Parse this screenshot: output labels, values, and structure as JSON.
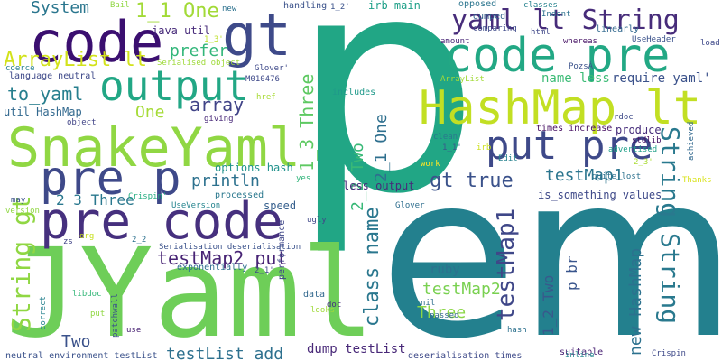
{
  "cloud": {
    "background": "#ffffff",
    "words": [
      {
        "text": "p",
        "color": "#21a685"
      },
      {
        "text": "em",
        "color": "#23808e"
      },
      {
        "text": "JYaml",
        "color": "#6ece58"
      },
      {
        "text": "SnakeYaml",
        "color": "#90d743"
      },
      {
        "text": "pre code",
        "color": "#46307e"
      },
      {
        "text": "pre p",
        "color": "#3e4989"
      },
      {
        "text": "code pre",
        "color": "#22a884"
      },
      {
        "text": "code",
        "color": "#3b0f70"
      },
      {
        "text": "gt",
        "color": "#3e4a89"
      },
      {
        "text": "output",
        "color": "#22a785"
      },
      {
        "text": "HashMap lt",
        "color": "#c2df23"
      },
      {
        "text": "put pre",
        "color": "#3e4989"
      },
      {
        "text": "yaml lt String",
        "color": "#472c7a"
      },
      {
        "text": "String String",
        "color": "#29798e"
      },
      {
        "text": "String gt",
        "color": "#90d743"
      },
      {
        "text": "1_1 One",
        "color": "#a2da37"
      },
      {
        "text": "System",
        "color": "#2a768e"
      },
      {
        "text": "ArrayList lt",
        "color": "#d2e21b"
      },
      {
        "text": "to_yaml",
        "color": "#277f8e"
      },
      {
        "text": "array",
        "color": "#404387"
      },
      {
        "text": "One",
        "color": "#a5db36"
      },
      {
        "text": "prefer",
        "color": "#32b67a"
      },
      {
        "text": "1_3 Three",
        "color": "#5ec962"
      },
      {
        "text": "2_2 Two",
        "color": "#38b977"
      },
      {
        "text": "2_1 One",
        "color": "#2e6f8e"
      },
      {
        "text": "gt true",
        "color": "#3b528b"
      },
      {
        "text": "testMap1",
        "color": "#2b758e"
      },
      {
        "text": "println",
        "color": "#2c718e"
      },
      {
        "text": "2_3 Three",
        "color": "#2a788e"
      },
      {
        "text": "testMap2 put",
        "color": "#482475"
      },
      {
        "text": "class name",
        "color": "#2a778e"
      },
      {
        "text": "testMap2",
        "color": "#7ad151"
      },
      {
        "text": "Three",
        "color": "#8bd646"
      },
      {
        "text": "testMap1",
        "color": "#3f4788"
      },
      {
        "text": "1_2 Two",
        "color": "#38598c"
      },
      {
        "text": "p br",
        "color": "#39558c"
      },
      {
        "text": "new HashMap",
        "color": "#2c718e"
      },
      {
        "text": "Two",
        "color": "#3b528b"
      },
      {
        "text": "testList add",
        "color": "#2d708e"
      },
      {
        "text": "dump testList",
        "color": "#482878"
      },
      {
        "text": "java util",
        "color": "#472a7a"
      },
      {
        "text": "util HashMap",
        "color": "#31688e"
      },
      {
        "text": "name less",
        "color": "#3bbb75"
      },
      {
        "text": "require yaml'",
        "color": "#3b528b"
      },
      {
        "text": "less output",
        "color": "#472c7a"
      },
      {
        "text": "is_something values",
        "color": "#3e4989"
      },
      {
        "text": "ruby",
        "color": "#2c718e"
      },
      {
        "text": "irb main",
        "color": "#1fa088"
      },
      {
        "text": "language neutral",
        "color": "#3e4989"
      },
      {
        "text": "options hash",
        "color": "#20928c"
      },
      {
        "text": "speed",
        "color": "#355f8d"
      },
      {
        "text": "performance",
        "color": "#3f4788"
      },
      {
        "text": "processed",
        "color": "#2a788e"
      },
      {
        "text": "exponentially",
        "color": "#2e6e8e"
      },
      {
        "text": "produce",
        "color": "#472d7b"
      },
      {
        "text": "times increase",
        "color": "#471063"
      },
      {
        "text": "Serialisation deserialisation",
        "color": "#3b528b"
      },
      {
        "text": "neutral environment testList",
        "color": "#3b528b"
      },
      {
        "text": "deserialisation times",
        "color": "#3e4a89"
      },
      {
        "text": "suitable",
        "color": "#482173"
      },
      {
        "text": "data",
        "color": "#31688e"
      },
      {
        "text": "handling",
        "color": "#3b528b"
      },
      {
        "text": "opposed",
        "color": "#2b758e"
      },
      {
        "text": "dumped",
        "color": "#33628d"
      },
      {
        "text": "comparing",
        "color": "#3e4989"
      },
      {
        "text": "amount",
        "color": "#482576"
      },
      {
        "text": "whereas",
        "color": "#471365"
      },
      {
        "text": "linearly",
        "color": "#31688e"
      },
      {
        "text": "includes",
        "color": "#1f998a"
      },
      {
        "text": "clean'",
        "color": "#2a788e"
      },
      {
        "text": "object",
        "color": "#414487"
      },
      {
        "text": "giving",
        "color": "#482878"
      },
      {
        "text": "coerce",
        "color": "#277f8e"
      },
      {
        "text": "Serialised object",
        "color": "#9fda3a"
      },
      {
        "text": "1_1'",
        "color": "#38598c"
      },
      {
        "text": "1_2'",
        "color": "#3b528b"
      },
      {
        "text": "1_3'",
        "color": "#bddf26"
      },
      {
        "text": "2_2",
        "color": "#2c718e"
      },
      {
        "text": "2_1'",
        "color": "#3e4a89"
      },
      {
        "text": "2_3'",
        "color": "#aadc32"
      },
      {
        "text": "Glover'",
        "color": "#3e4989"
      },
      {
        "text": "Glover",
        "color": "#2e6e8e"
      },
      {
        "text": "Crispin'",
        "color": "#26ad81"
      },
      {
        "text": "Crispin",
        "color": "#3e4989"
      },
      {
        "text": "href",
        "color": "#a8db34"
      },
      {
        "text": "html",
        "color": "#3f4788"
      },
      {
        "text": "Indent",
        "color": "#2c718e"
      },
      {
        "text": "classes",
        "color": "#26828e"
      },
      {
        "text": "rdoc",
        "color": "#3e4a89"
      },
      {
        "text": "stdlib",
        "color": "#471164"
      },
      {
        "text": "advertised",
        "color": "#1f9f88"
      },
      {
        "text": "achieved",
        "color": "#31688e"
      },
      {
        "text": "quite lost",
        "color": "#2c718e"
      },
      {
        "text": "Thanks",
        "color": "#d8e219"
      },
      {
        "text": "UseHeader",
        "color": "#3b528b"
      },
      {
        "text": "UseVersion",
        "color": "#25848e"
      },
      {
        "text": "PozsÁ",
        "color": "#3b528b"
      },
      {
        "text": "load",
        "color": "#3e4989"
      },
      {
        "text": "work",
        "color": "#fde725"
      },
      {
        "text": "Edit",
        "color": "#26828e"
      },
      {
        "text": "irb",
        "color": "#cde11d"
      },
      {
        "text": "nil",
        "color": "#2e6e8e"
      },
      {
        "text": "yes",
        "color": "#31b57b"
      },
      {
        "text": "doc",
        "color": "#46327e"
      },
      {
        "text": "passed",
        "color": "#31688e"
      },
      {
        "text": "hash",
        "color": "#2c718e"
      },
      {
        "text": "inline",
        "color": "#25858e"
      },
      {
        "text": "libdoc",
        "color": "#35b779"
      },
      {
        "text": "patchwall",
        "color": "#3b528b"
      },
      {
        "text": "looks",
        "color": "#a0da39"
      },
      {
        "text": "correct",
        "color": "#26828e"
      },
      {
        "text": "use",
        "color": "#482173"
      },
      {
        "text": "put",
        "color": "#90d743"
      },
      {
        "text": "zs",
        "color": "#414487"
      },
      {
        "text": "org",
        "color": "#c8e020"
      },
      {
        "text": "ugly",
        "color": "#3f4788"
      },
      {
        "text": "may",
        "color": "#3b528b"
      },
      {
        "text": "version",
        "color": "#90d743"
      },
      {
        "text": "M010476",
        "color": "#3e4989"
      },
      {
        "text": "new",
        "color": "#2c718e"
      },
      {
        "text": "ArrayList",
        "color": "#a2da37"
      },
      {
        "text": "Bail",
        "color": "#90d743"
      }
    ]
  }
}
